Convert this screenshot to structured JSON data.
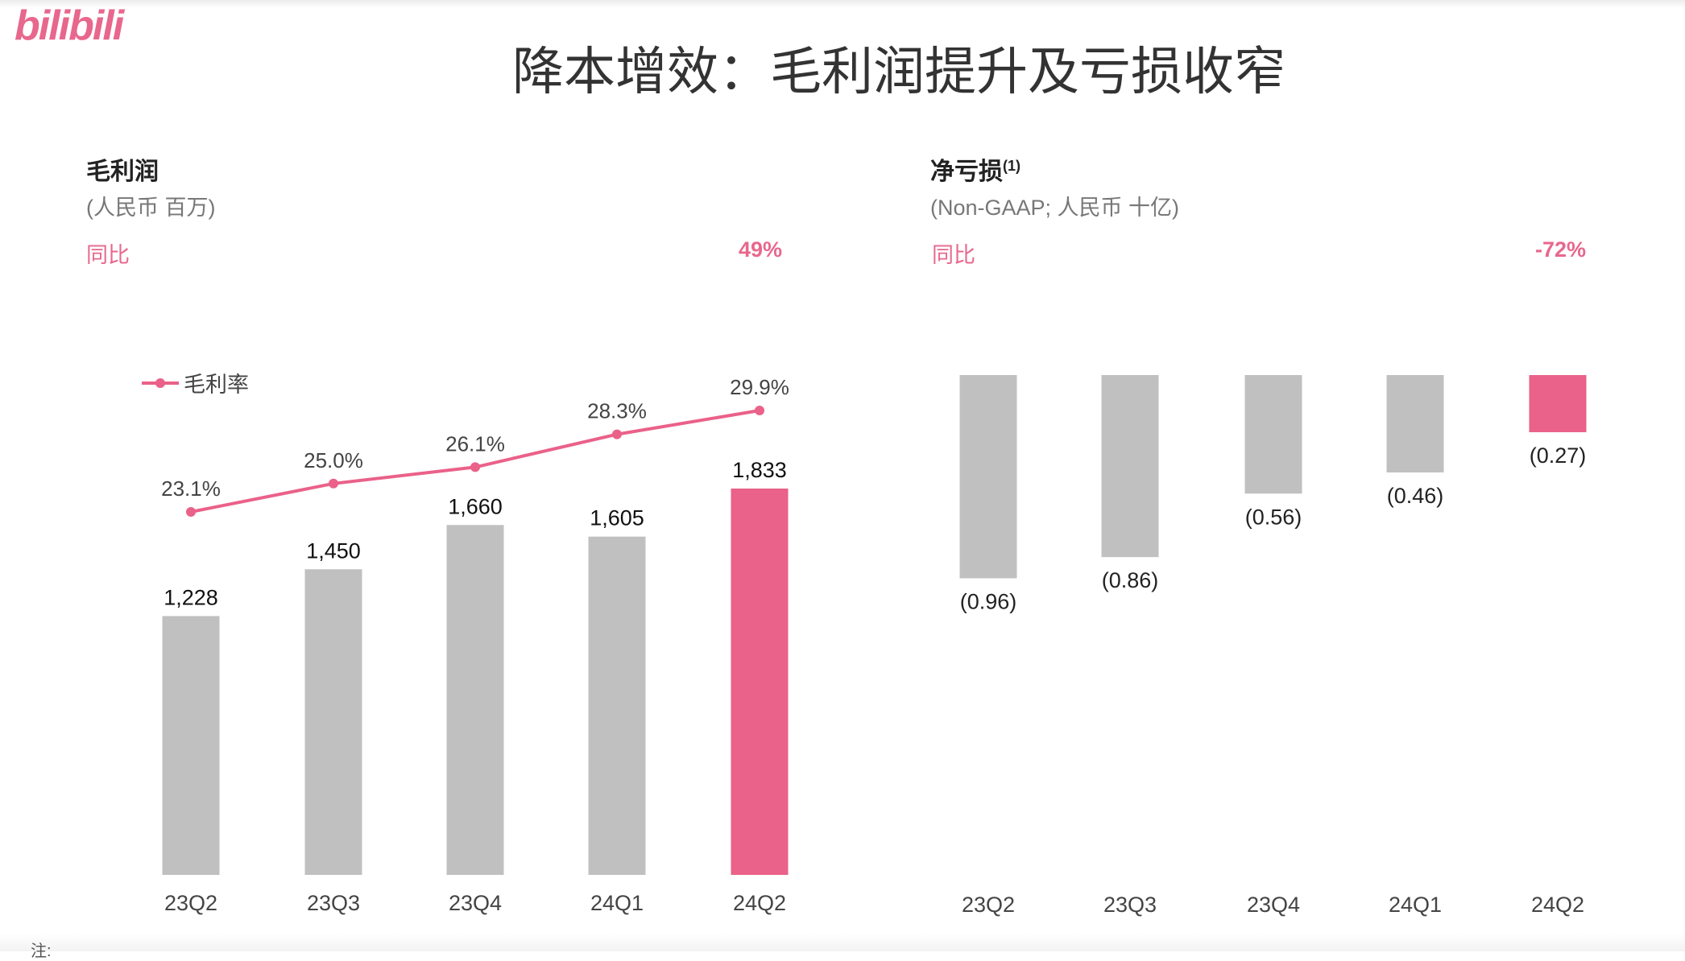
{
  "logo": "bilibili",
  "title": "降本增效：毛利润提升及亏损收窄",
  "note": "注:",
  "colors": {
    "accent": "#ea6189",
    "bar": "#c0c0c0"
  },
  "chart_data": [
    {
      "type": "bar",
      "title": "毛利润",
      "subtitle": "(人民币 百万)",
      "yoy_label": "同比",
      "yoy_value": "49%",
      "categories": [
        "23Q2",
        "23Q3",
        "23Q4",
        "24Q1",
        "24Q2"
      ],
      "values": [
        1228,
        1450,
        1660,
        1605,
        1833
      ],
      "value_labels": [
        "1,228",
        "1,450",
        "1,660",
        "1,605",
        "1,833"
      ],
      "highlight_index": 4,
      "line_series": {
        "name": "毛利率",
        "values": [
          23.1,
          25.0,
          26.1,
          28.3,
          29.9
        ],
        "labels": [
          "23.1%",
          "25.0%",
          "26.1%",
          "28.3%",
          "29.9%"
        ]
      }
    },
    {
      "type": "bar",
      "title": "净亏损",
      "title_sup": "(1)",
      "subtitle": "(Non-GAAP; 人民币 十亿)",
      "yoy_label": "同比",
      "yoy_value": "-72%",
      "categories": [
        "23Q2",
        "23Q3",
        "23Q4",
        "24Q1",
        "24Q2"
      ],
      "values": [
        -0.96,
        -0.86,
        -0.56,
        -0.46,
        -0.27
      ],
      "value_labels": [
        "(0.96)",
        "(0.86)",
        "(0.56)",
        "(0.46)",
        "(0.27)"
      ],
      "highlight_index": 4
    }
  ]
}
